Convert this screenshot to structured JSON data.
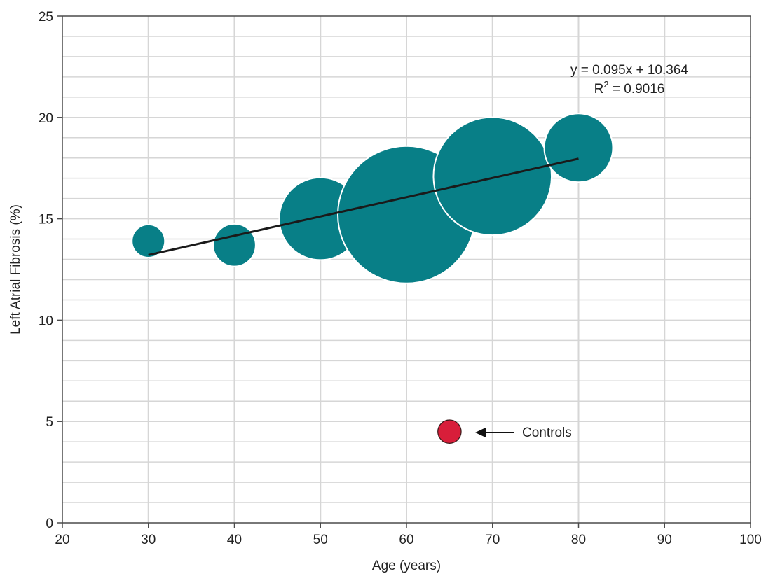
{
  "chart_data": {
    "type": "scatter",
    "subtype": "bubble",
    "xlabel": "Age (years)",
    "ylabel": "Left Atrial Fibrosis (%)",
    "xlim": [
      20,
      100
    ],
    "ylim": [
      0,
      25
    ],
    "x_ticks": [
      "20",
      "30",
      "40",
      "50",
      "60",
      "70",
      "80",
      "90",
      "100"
    ],
    "y_ticks": [
      "0",
      "5",
      "10",
      "15",
      "20",
      "25"
    ],
    "grid": true,
    "series": [
      {
        "color": "#087f87",
        "points": [
          {
            "x": 30,
            "y": 13.9,
            "size": 0.24
          },
          {
            "x": 40,
            "y": 13.7,
            "size": 0.31
          },
          {
            "x": 50,
            "y": 15.0,
            "size": 0.6
          },
          {
            "x": 60,
            "y": 15.2,
            "size": 1.0
          },
          {
            "x": 70,
            "y": 17.1,
            "size": 0.86
          },
          {
            "x": 80,
            "y": 18.5,
            "size": 0.5
          }
        ]
      },
      {
        "color": "#d81e3a",
        "points": [
          {
            "x": 65,
            "y": 4.5,
            "size": 0.17
          }
        ]
      }
    ],
    "trendline": {
      "x_range": [
        30,
        80
      ],
      "slope": 0.095,
      "intercept": 10.364,
      "color": "#1a1a1a"
    },
    "annotations": {
      "equation": "y = 0.095x + 10.364",
      "r_squared_prefix": "R",
      "r_squared_sup": "2",
      "r_squared_suffix": " = 0.9016",
      "controls_label": "Controls"
    }
  }
}
